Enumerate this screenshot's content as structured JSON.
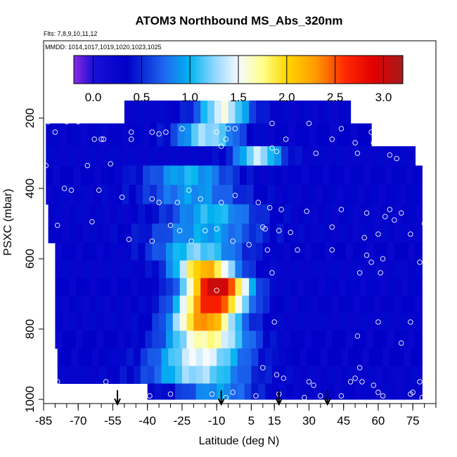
{
  "chart_data": {
    "type": "heatmap",
    "title": "ATOM3 Northbound MS_Abs_320nm",
    "flights_note": "Flts: 7,8,9,10,11,12",
    "dates_note": "MMDD: 1014,1017,1019,1020,1023,1025",
    "xlabel": "Latitude (deg N)",
    "ylabel": "PSXC (mbar)",
    "xlim": [
      -85,
      85
    ],
    "ylim": [
      1000,
      0
    ],
    "x_ticks": [
      -85,
      -70,
      -55,
      -40,
      -25,
      -10,
      5,
      15,
      30,
      45,
      60,
      75
    ],
    "y_ticks": [
      200,
      400,
      600,
      800,
      1000
    ],
    "colorbar": {
      "range": [
        -0.2,
        3.2
      ],
      "ticks": [
        0.0,
        0.5,
        1.0,
        1.5,
        2.0,
        2.5,
        3.0
      ],
      "tick_labels": [
        "0.0",
        "0.5",
        "1.0",
        "1.5",
        "2.0",
        "2.5",
        "3.0"
      ],
      "stops": [
        {
          "v": -0.2,
          "c": "#8a2be2"
        },
        {
          "v": 0.0,
          "c": "#1a0fd8"
        },
        {
          "v": 0.35,
          "c": "#0000c8"
        },
        {
          "v": 0.75,
          "c": "#1e6cf0"
        },
        {
          "v": 1.0,
          "c": "#00b4f0"
        },
        {
          "v": 1.25,
          "c": "#8fd6ff"
        },
        {
          "v": 1.5,
          "c": "#f5faff"
        },
        {
          "v": 1.75,
          "c": "#ffff8c"
        },
        {
          "v": 2.0,
          "c": "#ffd700"
        },
        {
          "v": 2.3,
          "c": "#ff9a00"
        },
        {
          "v": 2.6,
          "c": "#ff2800"
        },
        {
          "v": 2.9,
          "c": "#e00000"
        },
        {
          "v": 3.2,
          "c": "#a51c1c"
        }
      ]
    },
    "pressure_bands": [
      {
        "p_top": 150,
        "p_bot": 215,
        "lat_min": -50,
        "lat_max": 48,
        "center_lat": -7,
        "peak": 1.5,
        "width": 11
      },
      {
        "p_top": 215,
        "p_bot": 280,
        "lat_min": -84,
        "lat_max": 57,
        "center_lat": -14,
        "peak": 1.3,
        "width": 13
      },
      {
        "p_top": 280,
        "p_bot": 335,
        "lat_min": -84,
        "lat_max": 76,
        "center_lat": 8,
        "peak": 1.35,
        "width": 10
      },
      {
        "p_top": 335,
        "p_bot": 390,
        "lat_min": -84,
        "lat_max": 79,
        "center_lat": -22,
        "peak": 1.0,
        "width": 18
      },
      {
        "p_top": 390,
        "p_bot": 445,
        "lat_min": -84,
        "lat_max": 79,
        "center_lat": -20,
        "peak": 0.9,
        "width": 20
      },
      {
        "p_top": 445,
        "p_bot": 500,
        "lat_min": -83,
        "lat_max": 79,
        "center_lat": -12,
        "peak": 1.05,
        "width": 18
      },
      {
        "p_top": 500,
        "p_bot": 555,
        "lat_min": -83,
        "lat_max": 79,
        "center_lat": -15,
        "peak": 0.95,
        "width": 22
      },
      {
        "p_top": 555,
        "p_bot": 605,
        "lat_min": -80,
        "lat_max": 79,
        "center_lat": -18,
        "peak": 1.2,
        "width": 18
      },
      {
        "p_top": 605,
        "p_bot": 655,
        "lat_min": -80,
        "lat_max": 79,
        "center_lat": -15,
        "peak": 2.2,
        "width": 13
      },
      {
        "p_top": 655,
        "p_bot": 705,
        "lat_min": -80,
        "lat_max": 79,
        "center_lat": -10,
        "peak": 3.1,
        "width": 13
      },
      {
        "p_top": 705,
        "p_bot": 755,
        "lat_min": -80,
        "lat_max": 79,
        "center_lat": -12,
        "peak": 2.75,
        "width": 14
      },
      {
        "p_top": 755,
        "p_bot": 805,
        "lat_min": -80,
        "lat_max": 79,
        "center_lat": -15,
        "peak": 2.35,
        "width": 14
      },
      {
        "p_top": 805,
        "p_bot": 855,
        "lat_min": -80,
        "lat_max": 79,
        "center_lat": -14,
        "peak": 1.75,
        "width": 17
      },
      {
        "p_top": 855,
        "p_bot": 905,
        "lat_min": -79,
        "lat_max": 79,
        "center_lat": -17,
        "peak": 1.5,
        "width": 19
      },
      {
        "p_top": 905,
        "p_bot": 955,
        "lat_min": -79,
        "lat_max": 79,
        "center_lat": -18,
        "peak": 1.3,
        "width": 20
      },
      {
        "p_top": 955,
        "p_bot": 1000,
        "lat_min": -40,
        "lat_max": 79,
        "center_lat": -10,
        "peak": 0.9,
        "width": 16
      }
    ],
    "background_value": 0.3,
    "arrows_lat": [
      -53,
      -8,
      17,
      38
    ],
    "sample_points": [
      [
        -57,
        185
      ],
      [
        -75,
        210
      ],
      [
        -83,
        210
      ],
      [
        -70,
        210
      ],
      [
        -47,
        240
      ],
      [
        -32,
        240
      ],
      [
        -25,
        230
      ],
      [
        -5,
        230
      ],
      [
        -2,
        230
      ],
      [
        14,
        215
      ],
      [
        30,
        215
      ],
      [
        44,
        230
      ],
      [
        57,
        240
      ],
      [
        -80,
        240
      ],
      [
        -63,
        260
      ],
      [
        -60,
        260
      ],
      [
        -59,
        260
      ],
      [
        -47,
        260
      ],
      [
        -38,
        240
      ],
      [
        -35,
        245
      ],
      [
        -10,
        240
      ],
      [
        -6,
        260
      ],
      [
        20,
        260
      ],
      [
        40,
        260
      ],
      [
        50,
        270
      ],
      [
        58,
        270
      ],
      [
        70,
        270
      ],
      [
        -8,
        280
      ],
      [
        14,
        285
      ],
      [
        16,
        295
      ],
      [
        33,
        300
      ],
      [
        51,
        300
      ],
      [
        65,
        305
      ],
      [
        68,
        315
      ],
      [
        -84,
        335
      ],
      [
        -56,
        330
      ],
      [
        -66,
        335
      ],
      [
        -76,
        400
      ],
      [
        -73,
        405
      ],
      [
        -61,
        405
      ],
      [
        -51,
        425
      ],
      [
        -38,
        430
      ],
      [
        -35,
        440
      ],
      [
        -27,
        440
      ],
      [
        -22,
        405
      ],
      [
        -17,
        430
      ],
      [
        -8,
        440
      ],
      [
        -2,
        420
      ],
      [
        8,
        440
      ],
      [
        13,
        455
      ],
      [
        18,
        460
      ],
      [
        29,
        465
      ],
      [
        44,
        460
      ],
      [
        55,
        470
      ],
      [
        63,
        480
      ],
      [
        70,
        470
      ],
      [
        65,
        460
      ],
      [
        80,
        500
      ],
      [
        67,
        490
      ],
      [
        -79,
        505
      ],
      [
        -64,
        495
      ],
      [
        -30,
        505
      ],
      [
        -26,
        520
      ],
      [
        -15,
        520
      ],
      [
        -10,
        515
      ],
      [
        10,
        510
      ],
      [
        11,
        515
      ],
      [
        17,
        520
      ],
      [
        22,
        525
      ],
      [
        40,
        510
      ],
      [
        54,
        540
      ],
      [
        60,
        530
      ],
      [
        74,
        530
      ],
      [
        -48,
        545
      ],
      [
        -38,
        550
      ],
      [
        -21,
        550
      ],
      [
        -3,
        550
      ],
      [
        4,
        560
      ],
      [
        12,
        575
      ],
      [
        25,
        575
      ],
      [
        40,
        575
      ],
      [
        55,
        590
      ],
      [
        62,
        600
      ],
      [
        78,
        610
      ],
      [
        57,
        610
      ],
      [
        52,
        640
      ],
      [
        61,
        640
      ],
      [
        14,
        640
      ],
      [
        -10,
        690
      ],
      [
        15,
        780
      ],
      [
        60,
        780
      ],
      [
        74,
        780
      ],
      [
        70,
        840
      ],
      [
        51,
        820
      ],
      [
        10,
        910
      ],
      [
        16,
        930
      ],
      [
        19,
        940
      ],
      [
        52,
        910
      ],
      [
        50,
        940
      ],
      [
        48,
        950
      ],
      [
        30,
        950
      ],
      [
        32,
        960
      ],
      [
        53,
        950
      ],
      [
        58,
        960
      ],
      [
        78,
        950
      ],
      [
        60,
        980
      ],
      [
        75,
        980
      ],
      [
        -79,
        950
      ],
      [
        -58,
        950
      ],
      [
        -39,
        990
      ],
      [
        -30,
        985
      ],
      [
        -12,
        985
      ],
      [
        -6,
        995
      ],
      [
        -3,
        980
      ],
      [
        7,
        990
      ],
      [
        17,
        985
      ],
      [
        28,
        995
      ],
      [
        35,
        990
      ],
      [
        44,
        990
      ],
      [
        62,
        990
      ],
      [
        74,
        985
      ],
      [
        79,
        995
      ]
    ]
  }
}
